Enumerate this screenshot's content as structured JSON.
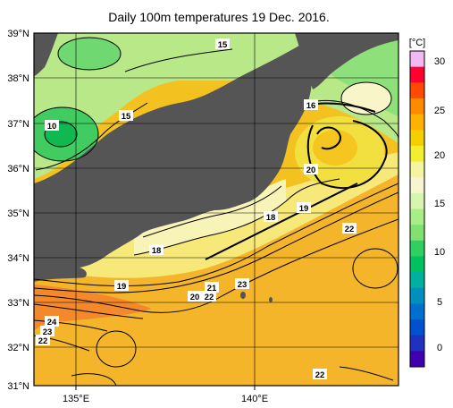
{
  "title": "Daily 100m temperatures 19 Dec. 2016.",
  "lat_labels": [
    "39°N",
    "38°N",
    "37°N",
    "36°N",
    "35°N",
    "34°N",
    "33°N",
    "32°N",
    "31°N"
  ],
  "lon_labels": [
    "135°E",
    "140°E"
  ],
  "colorbar": {
    "unit": "[°C]",
    "ticks": [
      "30",
      "25",
      "20",
      "15",
      "10",
      "5",
      "0"
    ],
    "colors": [
      "#f2b8f2",
      "#ff0030",
      "#ff4a00",
      "#ff8a00",
      "#ffb000",
      "#f5d000",
      "#f2ee30",
      "#f5f5a0",
      "#f5f5d0",
      "#d8f5b0",
      "#a8ee88",
      "#80e070",
      "#30d060",
      "#00c060",
      "#00b0a0",
      "#0090c0",
      "#0070d0",
      "#0050d0",
      "#2030c0",
      "#4000b0"
    ]
  },
  "contour_labels": [
    "15",
    "15",
    "10",
    "16",
    "20",
    "19",
    "18",
    "22",
    "18",
    "19",
    "21",
    "20",
    "22",
    "23",
    "24",
    "23",
    "22",
    "22"
  ],
  "colors": {
    "land": "#555555",
    "warm": "#f3c221",
    "warmer": "#f6a83a",
    "hottest": "#f3892a",
    "cool": "#f7f3a0",
    "cold": "#a6e07a",
    "coldest": "#2fc85c"
  }
}
